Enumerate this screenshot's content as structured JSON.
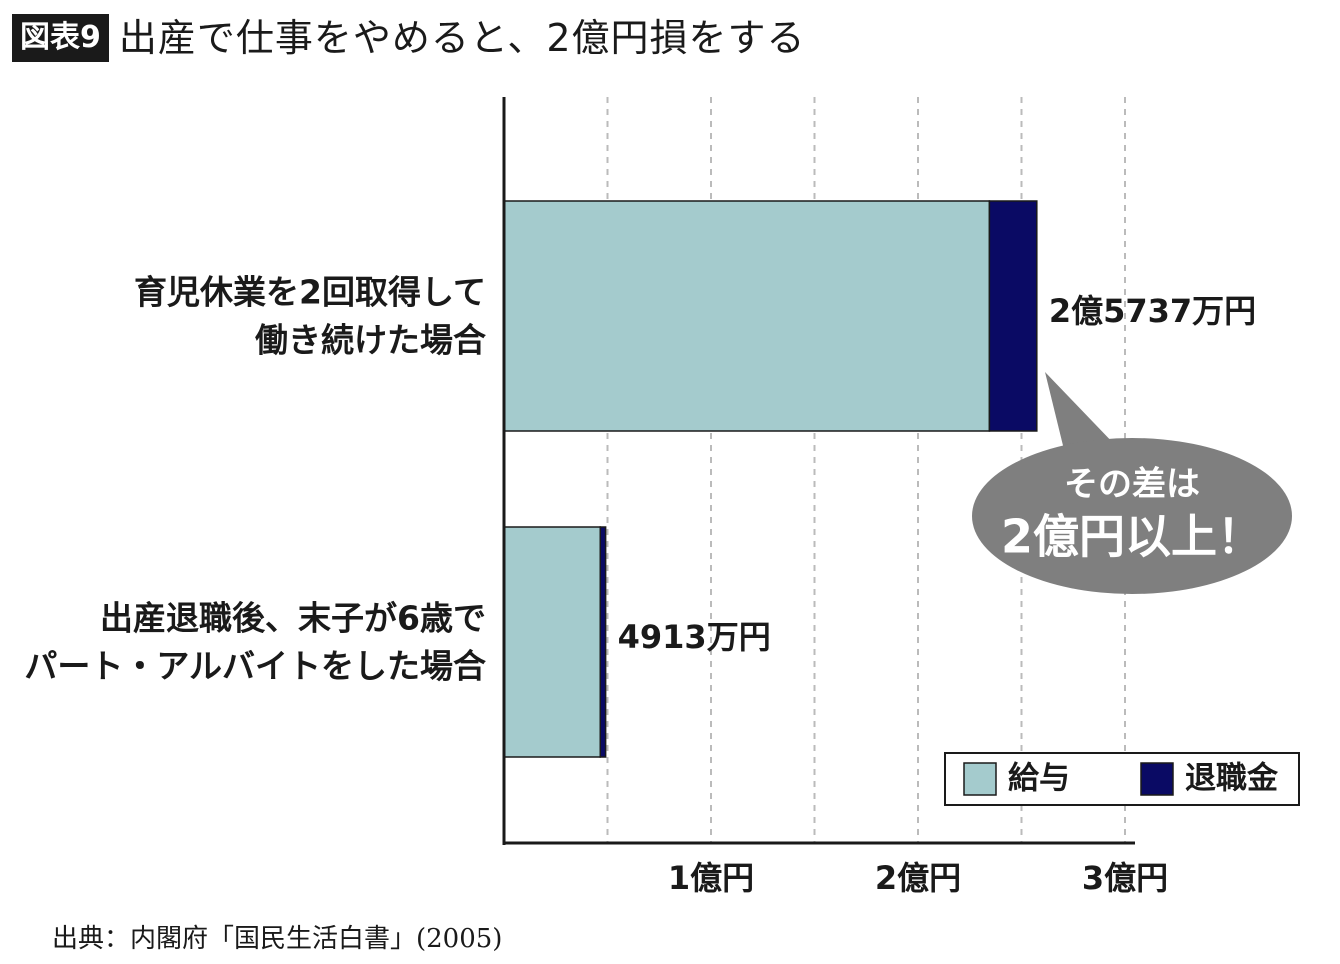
{
  "figure_label": "図表9",
  "title": "出産で仕事をやめると、2億円損をする",
  "source": "出典：内閣府「国民生活白書」(2005)",
  "callout": {
    "line1": "その差は",
    "line2": "2億円以上！"
  },
  "colors": {
    "salary": "#a4cbcd",
    "retirement": "#0a0a64",
    "axis": "#1a1a1a",
    "grid": "#bbbbbb",
    "callout": "#7f7f7f"
  },
  "chart_data": {
    "type": "bar",
    "orientation": "horizontal",
    "stacked": true,
    "categories": [
      [
        "育児休業を2回取得して",
        "働き続けた場合"
      ],
      [
        "出産退職後、末子が6歳で",
        "パート・アルバイトをした場合"
      ]
    ],
    "series": [
      {
        "name": "給与",
        "values": [
          2.345,
          0.465
        ]
      },
      {
        "name": "退職金",
        "values": [
          0.229,
          0.026
        ]
      }
    ],
    "value_labels": [
      "2億5737万円",
      "4913万円"
    ],
    "x_ticks": [
      1,
      2,
      3
    ],
    "x_tick_labels": [
      "1億円",
      "2億円",
      "3億円"
    ],
    "xlim": [
      0,
      3.1
    ],
    "unit": "億円",
    "grid": true,
    "legend_position": "bottom-right"
  }
}
